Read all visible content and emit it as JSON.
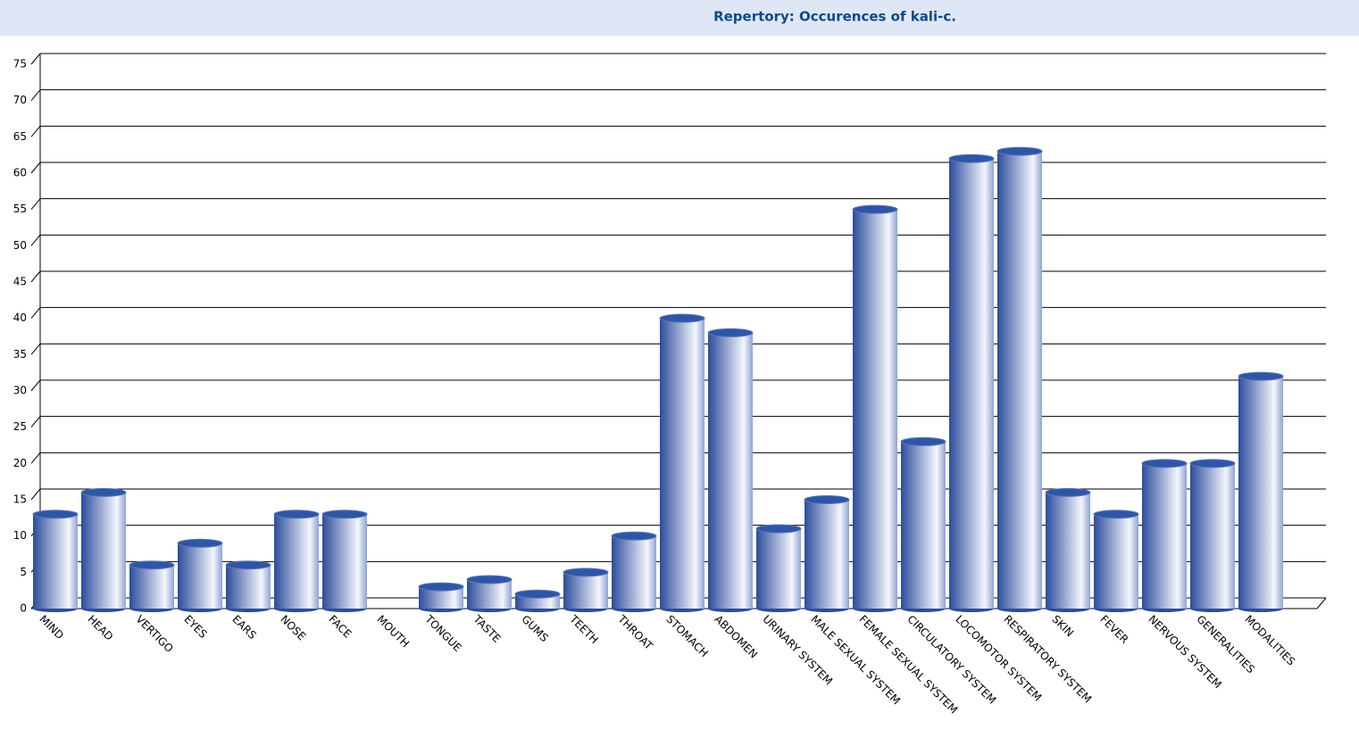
{
  "chart_data": {
    "type": "bar",
    "title": "Repertory: Occurences of kali-c.",
    "categories": [
      "MIND",
      "HEAD",
      "VERTIGO",
      "EYES",
      "EARS",
      "NOSE",
      "FACE",
      "MOUTH",
      "TONGUE",
      "TASTE",
      "GUMS",
      "TEETH",
      "THROAT",
      "STOMACH",
      "ABDOMEN",
      "URINARY SYSTEM",
      "MALE SEXUAL SYSTEM",
      "FEMALE SEXUAL SYSTEM",
      "CIRCULATORY SYSTEM",
      "LOCOMOTOR SYSTEM",
      "RESPIRATORY SYSTEM",
      "SKIN",
      "FEVER",
      "NERVOUS SYSTEM",
      "GENERALITIES",
      "MODALITIES"
    ],
    "values": [
      13,
      16,
      6,
      9,
      6,
      13,
      13,
      0,
      3,
      4,
      2,
      5,
      10,
      40,
      38,
      11,
      15,
      55,
      23,
      62,
      63,
      16,
      13,
      20,
      20,
      32
    ],
    "color": "#2f56a6",
    "ylim": [
      0,
      75
    ],
    "yticks": [
      0,
      5,
      10,
      15,
      20,
      25,
      30,
      35,
      40,
      45,
      50,
      55,
      60,
      65,
      70,
      75
    ],
    "grid": true
  }
}
